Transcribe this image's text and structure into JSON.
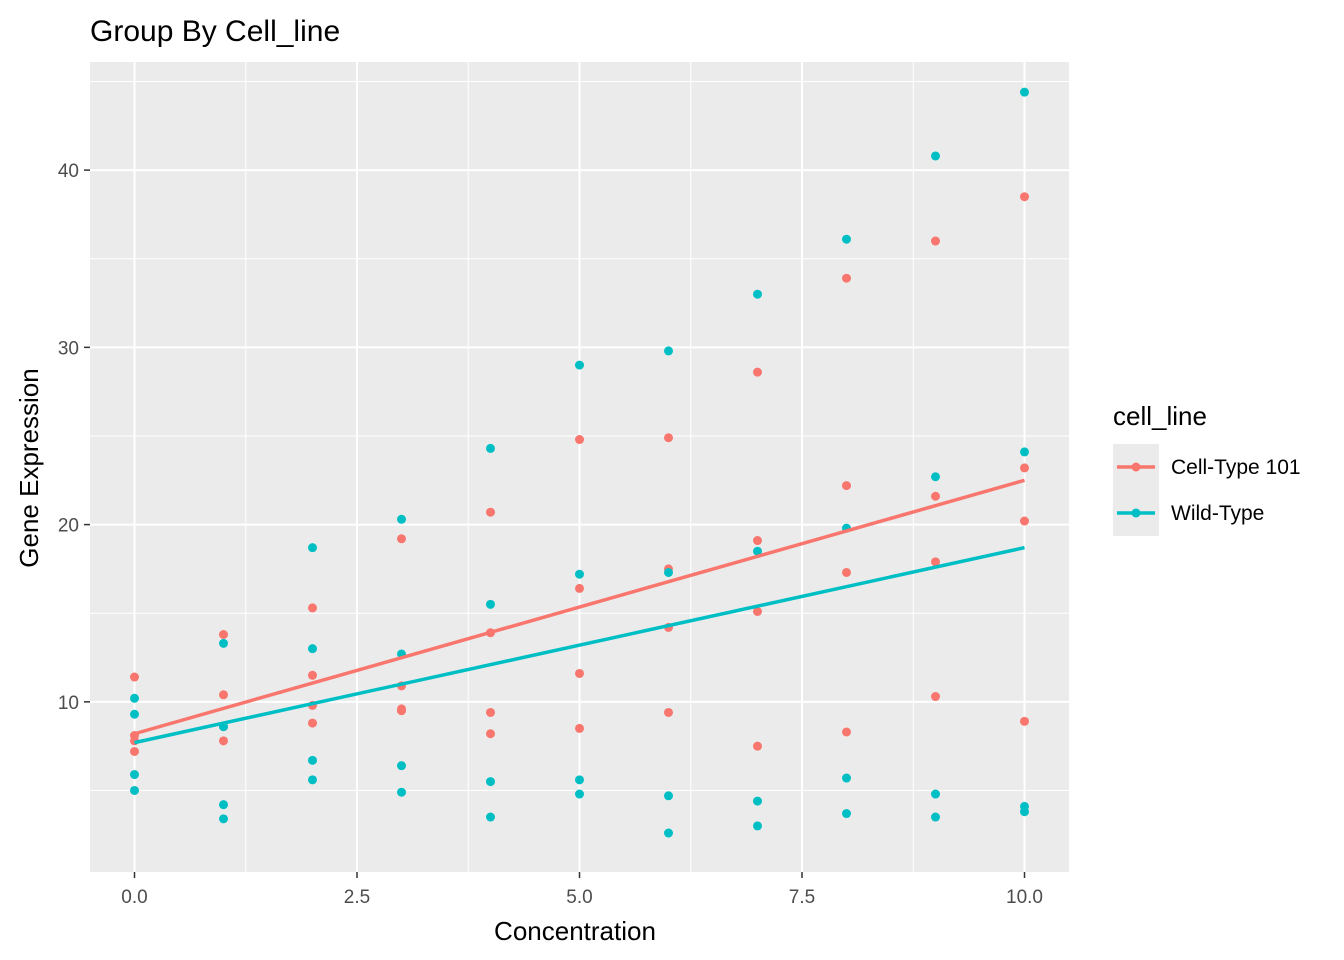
{
  "chart_data": {
    "type": "scatter",
    "title": "Group By Cell_line",
    "xlabel": "Concentration",
    "ylabel": "Gene Expression",
    "xlim": [
      -0.5,
      10.5
    ],
    "ylim": [
      0.4,
      46.1
    ],
    "x_ticks": [
      0,
      2.5,
      5,
      7.5,
      10
    ],
    "x_tick_labels": [
      "0.0",
      "2.5",
      "5.0",
      "7.5",
      "10.0"
    ],
    "y_ticks": [
      10,
      20,
      30,
      40
    ],
    "y_tick_labels": [
      "10",
      "20",
      "30",
      "40"
    ],
    "grid": true,
    "panel_background": "#ebebeb",
    "legend": {
      "title": "cell_line",
      "position": "right"
    },
    "series": [
      {
        "name": "Cell-Type 101",
        "color": "#f8766d",
        "points": [
          [
            0,
            11.4
          ],
          [
            0,
            8.1
          ],
          [
            0,
            7.8
          ],
          [
            0,
            7.2
          ],
          [
            1,
            13.8
          ],
          [
            1,
            10.4
          ],
          [
            1,
            8.6
          ],
          [
            1,
            7.8
          ],
          [
            2,
            15.3
          ],
          [
            2,
            11.5
          ],
          [
            2,
            9.8
          ],
          [
            2,
            8.8
          ],
          [
            3,
            19.2
          ],
          [
            3,
            10.9
          ],
          [
            3,
            9.6
          ],
          [
            3,
            9.5
          ],
          [
            4,
            20.7
          ],
          [
            4,
            13.9
          ],
          [
            4,
            9.4
          ],
          [
            4,
            8.2
          ],
          [
            5,
            24.8
          ],
          [
            5,
            16.4
          ],
          [
            5,
            11.6
          ],
          [
            5,
            8.5
          ],
          [
            6,
            24.9
          ],
          [
            6,
            17.5
          ],
          [
            6,
            14.2
          ],
          [
            6,
            9.4
          ],
          [
            7,
            28.6
          ],
          [
            7,
            19.1
          ],
          [
            7,
            15.1
          ],
          [
            7,
            7.5
          ],
          [
            8,
            33.9
          ],
          [
            8,
            22.2
          ],
          [
            8,
            17.3
          ],
          [
            8,
            8.3
          ],
          [
            9,
            36.0
          ],
          [
            9,
            21.6
          ],
          [
            9,
            17.9
          ],
          [
            9,
            10.3
          ],
          [
            10,
            38.5
          ],
          [
            10,
            23.2
          ],
          [
            10,
            20.2
          ],
          [
            10,
            8.9
          ]
        ],
        "fit": {
          "x": [
            0,
            10
          ],
          "y": [
            8.2,
            22.5
          ]
        }
      },
      {
        "name": "Wild-Type",
        "color": "#00bfc4",
        "points": [
          [
            0,
            10.2
          ],
          [
            0,
            9.3
          ],
          [
            0,
            5.9
          ],
          [
            0,
            5.0
          ],
          [
            1,
            13.3
          ],
          [
            1,
            8.6
          ],
          [
            1,
            4.2
          ],
          [
            1,
            3.4
          ],
          [
            2,
            18.7
          ],
          [
            2,
            13.0
          ],
          [
            2,
            6.7
          ],
          [
            2,
            5.6
          ],
          [
            3,
            20.3
          ],
          [
            3,
            12.7
          ],
          [
            3,
            6.4
          ],
          [
            3,
            4.9
          ],
          [
            4,
            24.3
          ],
          [
            4,
            15.5
          ],
          [
            4,
            5.5
          ],
          [
            4,
            3.5
          ],
          [
            5,
            29.0
          ],
          [
            5,
            17.2
          ],
          [
            5,
            5.6
          ],
          [
            5,
            4.8
          ],
          [
            6,
            29.8
          ],
          [
            6,
            17.3
          ],
          [
            6,
            4.7
          ],
          [
            6,
            2.6
          ],
          [
            7,
            33.0
          ],
          [
            7,
            18.5
          ],
          [
            7,
            4.4
          ],
          [
            7,
            3.0
          ],
          [
            8,
            36.1
          ],
          [
            8,
            19.8
          ],
          [
            8,
            5.7
          ],
          [
            8,
            3.7
          ],
          [
            9,
            40.8
          ],
          [
            9,
            22.7
          ],
          [
            9,
            4.8
          ],
          [
            9,
            3.5
          ],
          [
            10,
            44.4
          ],
          [
            10,
            24.1
          ],
          [
            10,
            4.1
          ],
          [
            10,
            3.8
          ]
        ],
        "fit": {
          "x": [
            0,
            10
          ],
          "y": [
            7.7,
            18.7
          ]
        }
      }
    ]
  }
}
